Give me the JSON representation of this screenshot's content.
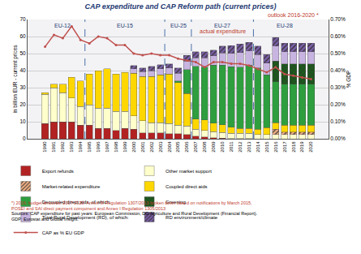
{
  "chart_data": {
    "type": "bar",
    "stacked": true,
    "grid": true,
    "legend": "bottom",
    "title": "CAP expenditure and CAP Reform path (current prices)",
    "y_label": "in billion EUR - current prices",
    "y2_label": "% GDP",
    "categories": [
      "1990",
      "1991",
      "1992",
      "1993",
      "1994",
      "1995",
      "1996",
      "1997",
      "1998",
      "1999",
      "2000",
      "2001",
      "2002",
      "2003",
      "2004",
      "2005",
      "2006",
      "2007",
      "2008",
      "2009",
      "2010",
      "2011",
      "2012",
      "2013",
      "2014",
      "2015",
      "2016",
      "2017",
      "2018",
      "2019",
      "2020"
    ],
    "ylim": [
      0,
      70
    ],
    "yticks": [
      0,
      10,
      20,
      30,
      40,
      50,
      60,
      70
    ],
    "y2lim": [
      0,
      0.7
    ],
    "y2ticks": [
      {
        "value": 0,
        "label": "0.00%"
      },
      {
        "value": 0.1,
        "label": "0.10%"
      },
      {
        "value": 0.2,
        "label": "0.20%"
      },
      {
        "value": 0.3,
        "label": "0.30%"
      },
      {
        "value": 0.4,
        "label": "0.40%"
      },
      {
        "value": 0.5,
        "label": "0.50%"
      },
      {
        "value": 0.6,
        "label": "0.60%"
      },
      {
        "value": 0.7,
        "label": "0.70%"
      }
    ],
    "series": [
      {
        "name": "Export refunds",
        "color": "#b22222",
        "values": [
          9,
          10,
          10,
          10,
          8,
          8,
          6,
          6,
          5,
          6,
          5.5,
          3.5,
          3.5,
          3.5,
          3,
          3,
          2.5,
          1.5,
          1,
          0.6,
          0.3,
          0.2,
          0.1,
          0.1,
          null,
          null,
          null,
          null,
          null,
          null,
          null
        ]
      },
      {
        "name": "Other market support",
        "color": "#ffffcc",
        "values": [
          17,
          20,
          17,
          14,
          11,
          12,
          12,
          12,
          11,
          10,
          8,
          7,
          6,
          6,
          6,
          5,
          5,
          4,
          4,
          3.5,
          3.5,
          3,
          3,
          3,
          2.5,
          2.5,
          2.5,
          2.5,
          2.5,
          2.5,
          2.5
        ]
      },
      {
        "name": "Market-related expenditure",
        "color": "#f4b183",
        "values": [
          null,
          null,
          null,
          null,
          null,
          null,
          null,
          null,
          null,
          null,
          null,
          null,
          null,
          null,
          null,
          null,
          null,
          null,
          null,
          null,
          null,
          null,
          null,
          null,
          null,
          null,
          3,
          1.5,
          1.5,
          1.5,
          1.5
        ]
      },
      {
        "name": "Coupled direct aids",
        "color": "#ffd700",
        "values": [
          1,
          2,
          5,
          12,
          15,
          18,
          22,
          23,
          22,
          23,
          25,
          26,
          27,
          28,
          29,
          25,
          19,
          6,
          6,
          5,
          4.5,
          3.5,
          3,
          3,
          3,
          4,
          4,
          4,
          4,
          4,
          4
        ]
      },
      {
        "name": "Decoupled direct aids, of which:",
        "color": "#2e9e3e",
        "values": [
          null,
          null,
          null,
          null,
          null,
          null,
          null,
          null,
          null,
          null,
          null,
          null,
          null,
          null,
          null,
          1,
          14,
          31,
          31,
          34,
          35,
          35.5,
          36,
          37,
          36,
          31,
          24,
          24,
          24,
          24,
          24
        ]
      },
      {
        "name": "Greening",
        "color": "#1a5e1a",
        "values": [
          null,
          null,
          null,
          null,
          null,
          null,
          null,
          null,
          null,
          null,
          null,
          null,
          null,
          null,
          null,
          null,
          null,
          null,
          null,
          null,
          null,
          null,
          null,
          null,
          null,
          null,
          12,
          12,
          12,
          12,
          12
        ]
      },
      {
        "name": "Total Rural Development (RD), of which:",
        "color": "#c8b4e0",
        "values": [
          null,
          null,
          null,
          null,
          null,
          null,
          null,
          null,
          null,
          null,
          2.5,
          3,
          3.5,
          3.5,
          3.5,
          4.5,
          5,
          5,
          5.5,
          5.5,
          7,
          8,
          8.5,
          8.5,
          8,
          7,
          9,
          7,
          7,
          7,
          7
        ]
      },
      {
        "name": "RD environment/climate",
        "color": "#7b5ea7",
        "values": [
          null,
          null,
          null,
          null,
          null,
          null,
          null,
          null,
          null,
          null,
          2,
          2,
          2.5,
          2.5,
          2.5,
          3,
          3.5,
          3.5,
          3.5,
          3.5,
          4,
          4.5,
          5,
          5,
          5,
          5,
          5,
          5,
          5,
          5,
          5
        ]
      },
      {
        "name": "CAP as % EU GDP",
        "color": "#c0504d",
        "type": "line",
        "axis": "y2",
        "marker": "circle",
        "values": [
          0.54,
          0.61,
          0.59,
          0.66,
          0.58,
          0.56,
          0.6,
          0.59,
          0.55,
          0.55,
          0.5,
          0.49,
          0.5,
          0.49,
          0.49,
          0.47,
          0.46,
          0.45,
          0.42,
          0.45,
          0.45,
          0.44,
          0.44,
          0.43,
          0.41,
          0.39,
          0.42,
          0.38,
          0.37,
          0.36,
          0.35
        ]
      }
    ],
    "eras": [
      {
        "label": "EU-12",
        "start": "1990",
        "end": "1994"
      },
      {
        "label": "EU-15",
        "start": "1995",
        "end": "2003"
      },
      {
        "label": "EU-25",
        "start": "2004",
        "end": "2006"
      },
      {
        "label": "EU-27",
        "start": "2007",
        "end": "2013"
      },
      {
        "label": "EU-28",
        "start": "2014",
        "end": "2020"
      }
    ],
    "annotations": [
      {
        "text": "actual expenditure",
        "x": "2010"
      },
      {
        "text": "outlook 2016-2020 *",
        "x": "2018"
      }
    ],
    "footnote": [
      "*) 2016: budget amounts; 2017-2020: Annex III Regulation 1307/2013 broken down based on notifications by March 2015,",
      "POSEI and SAI direct payment component and Annex I Regulation 1305/2013"
    ],
    "sources": [
      "Sources: CAP expenditure for past years: European Commission, DG Agriculture and Rural Development (Financial Report).",
      "GDP: Eurostat and Global Insight."
    ]
  }
}
